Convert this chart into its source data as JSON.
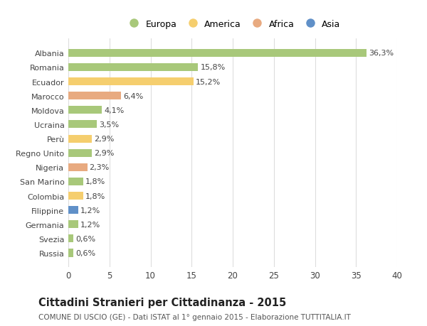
{
  "categories": [
    "Albania",
    "Romania",
    "Ecuador",
    "Marocco",
    "Moldova",
    "Ucraina",
    "Perù",
    "Regno Unito",
    "Nigeria",
    "San Marino",
    "Colombia",
    "Filippine",
    "Germania",
    "Svezia",
    "Russia"
  ],
  "values": [
    36.3,
    15.8,
    15.2,
    6.4,
    4.1,
    3.5,
    2.9,
    2.9,
    2.3,
    1.8,
    1.8,
    1.2,
    1.2,
    0.6,
    0.6
  ],
  "labels": [
    "36,3%",
    "15,8%",
    "15,2%",
    "6,4%",
    "4,1%",
    "3,5%",
    "2,9%",
    "2,9%",
    "2,3%",
    "1,8%",
    "1,8%",
    "1,2%",
    "1,2%",
    "0,6%",
    "0,6%"
  ],
  "continents": [
    "Europa",
    "Europa",
    "America",
    "Africa",
    "Europa",
    "Europa",
    "America",
    "Europa",
    "Africa",
    "Europa",
    "America",
    "Asia",
    "Europa",
    "Europa",
    "Europa"
  ],
  "colors": {
    "Europa": "#a8c87a",
    "America": "#f5ce6e",
    "Africa": "#e8aa80",
    "Asia": "#6090c8"
  },
  "legend_items": [
    "Europa",
    "America",
    "Africa",
    "Asia"
  ],
  "title": "Cittadini Stranieri per Cittadinanza - 2015",
  "subtitle": "COMUNE DI USCIO (GE) - Dati ISTAT al 1° gennaio 2015 - Elaborazione TUTTITALIA.IT",
  "xlim": [
    0,
    40
  ],
  "xticks": [
    0,
    5,
    10,
    15,
    20,
    25,
    30,
    35,
    40
  ],
  "background_color": "#ffffff",
  "grid_color": "#dddddd",
  "bar_height": 0.55,
  "label_fontsize": 8.0,
  "ytick_fontsize": 8.0,
  "xtick_fontsize": 8.5,
  "title_fontsize": 10.5,
  "subtitle_fontsize": 7.5
}
